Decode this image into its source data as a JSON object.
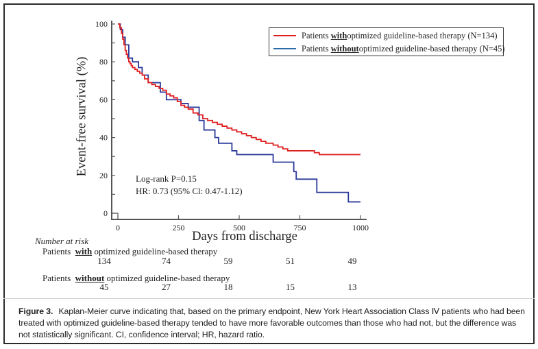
{
  "figure": {
    "caption_label": "Figure 3.",
    "caption_text": "Kaplan-Meier curve indicating that, based on the primary endpoint, New York Heart Association Class Ⅳ patients who had been treated with optimized guideline-based therapy tended to have more favorable outcomes than those who had not, but the difference was not statistically significant. CI, confidence interval; HR, hazard ratio."
  },
  "chart_data": {
    "type": "line",
    "subtype": "kaplan-meier step",
    "title": "",
    "xlabel": "Days from discharge",
    "ylabel": "Event-free survival (%)",
    "xlim": [
      0,
      1000
    ],
    "ylim": [
      0,
      100
    ],
    "xticks": [
      0,
      250,
      500,
      750,
      1000
    ],
    "yticks": [
      0,
      20,
      40,
      60,
      80,
      100
    ],
    "grid": false,
    "legend_position": "top-right",
    "legend": [
      {
        "prefix": "Patients ",
        "emph": "with",
        "suffix": " optimized guideline-based therapy (N=134)",
        "color": "#e02020"
      },
      {
        "prefix": "Patients ",
        "emph": "without",
        "suffix": " optimized guideline-based therapy (N=45)",
        "color": "#2b3a9a"
      }
    ],
    "series": [
      {
        "name": "Patients with optimized guideline-based therapy (N=134)",
        "color": "#e02020",
        "x": [
          0,
          8,
          15,
          20,
          25,
          30,
          35,
          40,
          45,
          50,
          55,
          60,
          70,
          80,
          90,
          100,
          110,
          125,
          140,
          155,
          170,
          185,
          200,
          215,
          230,
          245,
          260,
          275,
          290,
          310,
          330,
          350,
          370,
          390,
          410,
          430,
          450,
          470,
          490,
          510,
          530,
          550,
          570,
          590,
          610,
          640,
          660,
          680,
          700,
          810,
          830,
          1000
        ],
        "y": [
          100,
          98,
          95,
          92,
          89,
          86,
          84,
          82,
          80,
          79,
          78,
          77,
          76,
          75,
          74,
          73,
          71,
          69,
          68,
          67,
          66,
          65,
          63,
          62,
          61,
          59,
          57,
          56,
          55,
          53,
          52,
          50,
          49,
          48,
          47,
          46,
          45,
          44,
          43,
          42,
          41,
          40,
          39,
          38,
          37,
          36,
          35,
          34,
          33,
          32,
          31,
          31
        ]
      },
      {
        "name": "Patients without optimized guideline-based therapy (N=45)",
        "color": "#2b3a9a",
        "x": [
          0,
          10,
          20,
          30,
          45,
          60,
          85,
          100,
          125,
          175,
          200,
          260,
          290,
          335,
          355,
          400,
          415,
          470,
          490,
          640,
          725,
          735,
          820,
          950,
          1000
        ],
        "y": [
          100,
          97,
          93,
          89,
          82,
          80,
          77,
          73,
          69,
          64,
          60,
          58,
          56,
          49,
          44,
          40,
          37,
          33,
          31,
          27,
          22,
          18,
          11,
          6,
          6
        ]
      }
    ],
    "annotations": [
      "Log-rank P=0.15",
      "HR: 0.73 (95% Cl: 0.47-1.12)"
    ],
    "number_at_risk": {
      "title": "Number at risk",
      "timepoints": [
        0,
        250,
        500,
        750,
        1000
      ],
      "rows": [
        {
          "prefix": "Patients ",
          "emph": "with",
          "suffix": " optimized guideline-based therapy",
          "values": [
            134,
            74,
            59,
            51,
            49
          ]
        },
        {
          "prefix": "Patients ",
          "emph": "without",
          "suffix": " optimized guideline-based therapy",
          "values": [
            45,
            27,
            18,
            15,
            13
          ]
        }
      ]
    }
  }
}
